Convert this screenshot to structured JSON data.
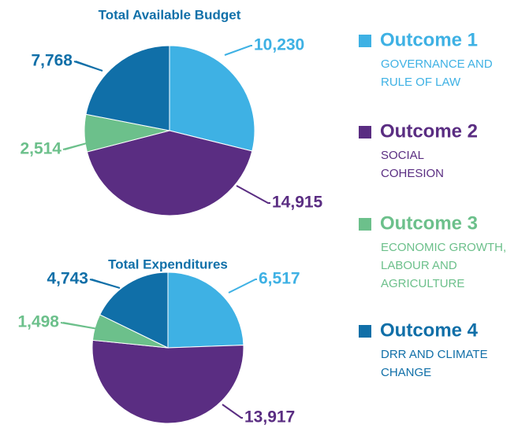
{
  "legend": [
    {
      "name": "Outcome 1",
      "description": [
        "GOVERNANCE AND",
        "RULE OF LAW"
      ],
      "color": "#3eb1e4"
    },
    {
      "name": "Outcome 2",
      "description": [
        "SOCIAL",
        "COHESION"
      ],
      "color": "#5a2d82"
    },
    {
      "name": "Outcome 3",
      "description": [
        "ECONOMIC GROWTH,",
        "LABOUR AND",
        "AGRICULTURE"
      ],
      "color": "#6cc08b"
    },
    {
      "name": "Outcome 4",
      "description": [
        "DRR AND CLIMATE",
        "CHANGE"
      ],
      "color": "#106fa8"
    }
  ],
  "chart_data": [
    {
      "type": "pie",
      "title": "Total Available Budget",
      "values": [
        10230,
        14915,
        2514,
        7768
      ],
      "value_labels": [
        "10,230",
        "14,915",
        "2,514",
        "7,768"
      ]
    },
    {
      "type": "pie",
      "title": "Total Expenditures",
      "values": [
        6517,
        13917,
        1498,
        4743
      ],
      "value_labels": [
        "6,517",
        "13,917",
        "1,498",
        "4,743"
      ]
    }
  ]
}
